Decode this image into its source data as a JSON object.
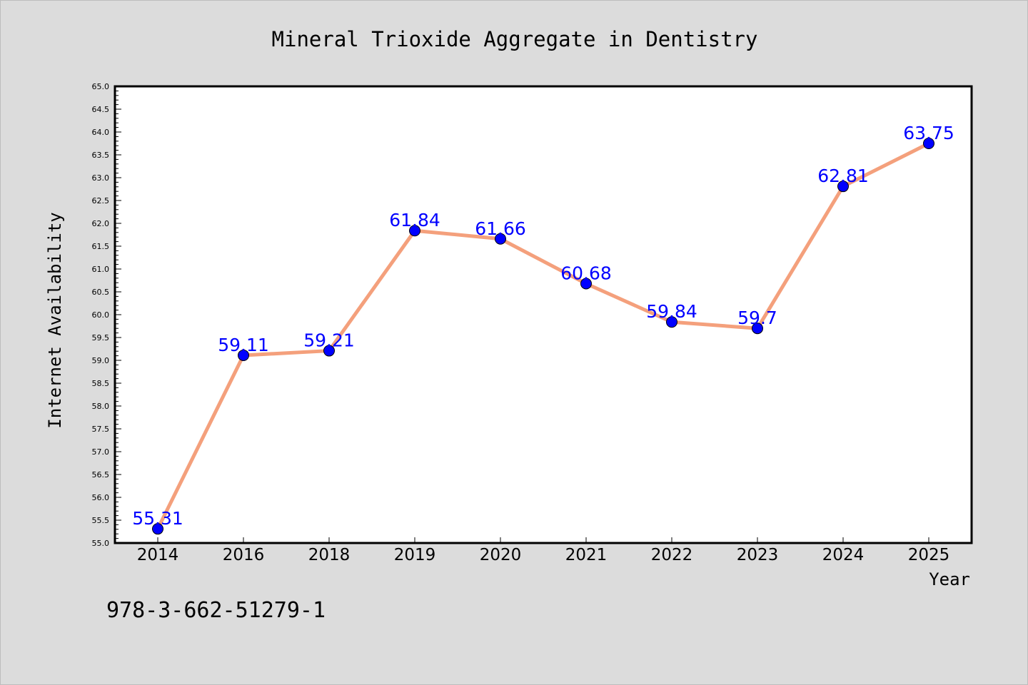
{
  "colors": {
    "background": "#dcdcdc",
    "plot_background": "#ffffff",
    "line": "#f4a07c",
    "marker": "#0000ff",
    "data_label": "#0000ff"
  },
  "footnote": "978-3-662-51279-1",
  "chart_data": {
    "type": "line",
    "title": "Mineral Trioxide Aggregate in Dentistry",
    "xlabel": "Year",
    "ylabel": "Internet Availability",
    "categories": [
      "2014",
      "2016",
      "2018",
      "2019",
      "2020",
      "2021",
      "2022",
      "2023",
      "2024",
      "2025"
    ],
    "values": [
      55.31,
      59.11,
      59.21,
      61.84,
      61.66,
      60.68,
      59.84,
      59.7,
      62.81,
      63.75
    ],
    "data_labels": [
      "55.31",
      "59.11",
      "59.21",
      "61.84",
      "61.66",
      "60.68",
      "59.84",
      "59.7",
      "62.81",
      "63.75"
    ],
    "ylim": [
      55.0,
      65.0
    ],
    "yticks": [
      "55.0",
      "55.5",
      "56.0",
      "56.5",
      "57.0",
      "57.5",
      "58.0",
      "58.5",
      "59.0",
      "59.5",
      "60.0",
      "60.5",
      "61.0",
      "61.5",
      "62.0",
      "62.5",
      "63.0",
      "63.5",
      "64.0",
      "64.5",
      "65.0"
    ],
    "grid": false,
    "legend": "none"
  }
}
